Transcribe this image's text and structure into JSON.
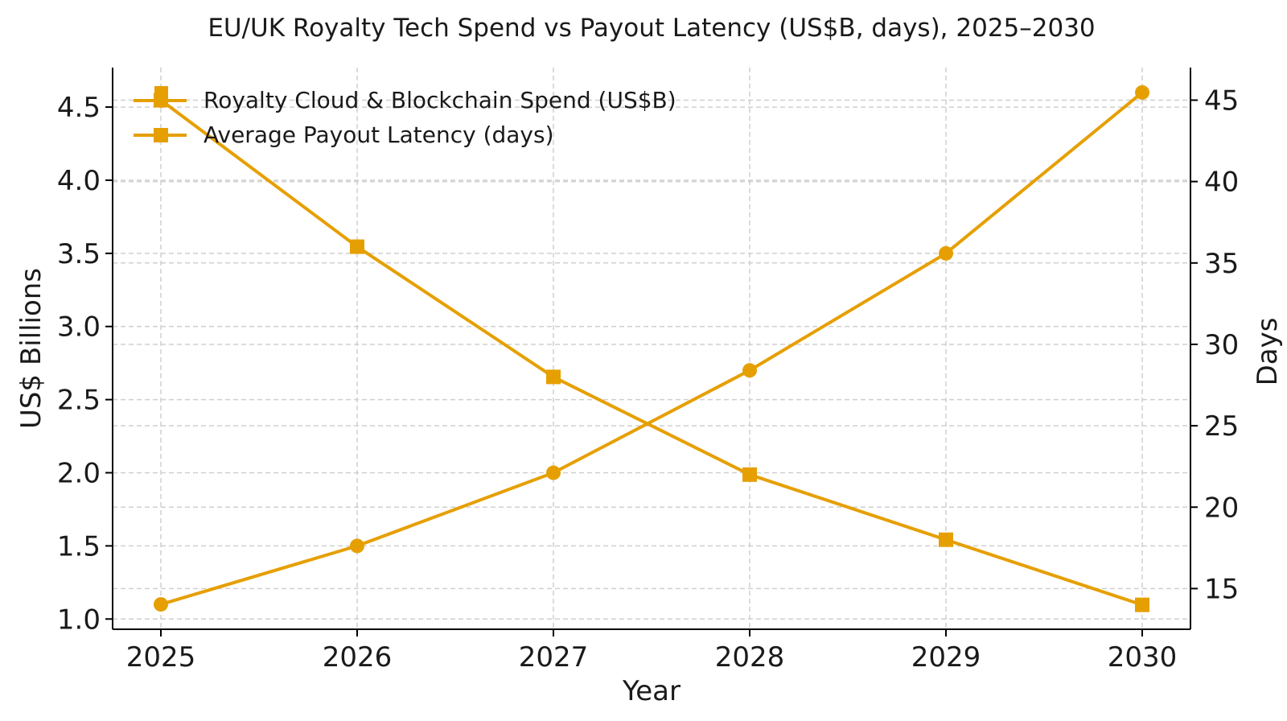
{
  "chart_data": {
    "type": "line",
    "title": "EU/UK Royalty Tech Spend vs Payout Latency (US$B, days), 2025–2030",
    "xlabel": "Year",
    "ylabel": "US$ Billions",
    "y2label": "Days",
    "categories": [
      "2025",
      "2026",
      "2027",
      "2028",
      "2029",
      "2030"
    ],
    "ylim": [
      0.93,
      4.77
    ],
    "y2lim": [
      12.5,
      47.0
    ],
    "yticks": [
      "1.0",
      "1.5",
      "2.0",
      "2.5",
      "3.0",
      "3.5",
      "4.0",
      "4.5"
    ],
    "y2ticks": [
      "15",
      "20",
      "25",
      "30",
      "35",
      "40",
      "45"
    ],
    "grid": true,
    "legend_position": "top-left",
    "series": [
      {
        "name": "Royalty Cloud & Blockchain Spend (US$B)",
        "axis": "left",
        "marker": "circle",
        "color": "#E69F00",
        "values": [
          1.1,
          1.5,
          2.0,
          2.7,
          3.5,
          4.6
        ]
      },
      {
        "name": "Average Payout Latency (days)",
        "axis": "right",
        "marker": "square",
        "color": "#E69F00",
        "values": [
          45,
          36,
          28,
          22,
          18,
          14
        ]
      }
    ]
  }
}
